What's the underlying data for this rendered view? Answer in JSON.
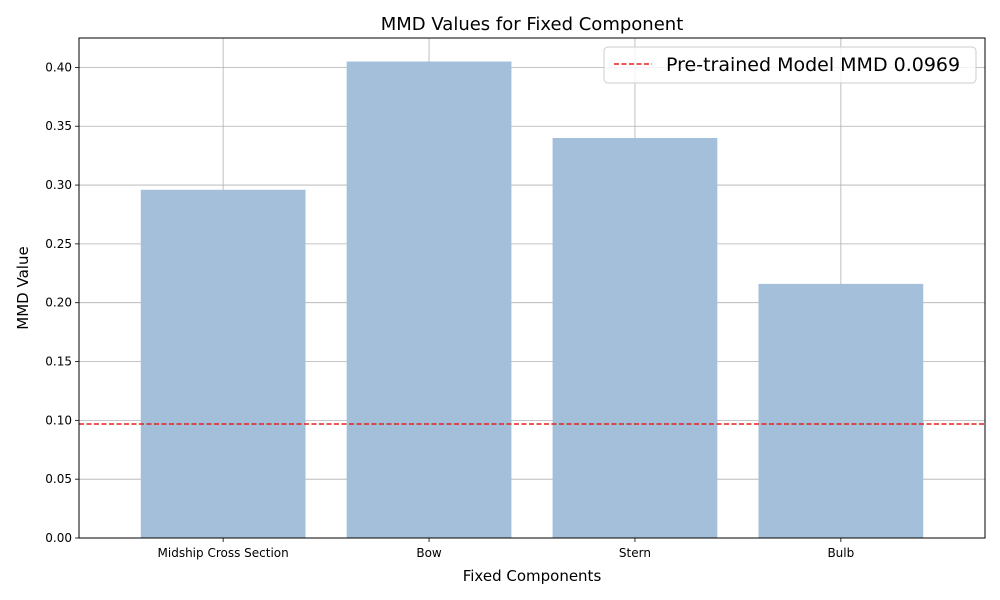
{
  "chart_data": {
    "type": "bar",
    "title": "MMD Values for Fixed Component",
    "xlabel": "Fixed Components",
    "ylabel": "MMD Value",
    "categories": [
      "Midship Cross Section",
      "Bow",
      "Stern",
      "Bulb"
    ],
    "values": [
      0.296,
      0.405,
      0.34,
      0.216
    ],
    "ylim": [
      0,
      0.425
    ],
    "yticks": [
      "0.00",
      "0.05",
      "0.10",
      "0.15",
      "0.20",
      "0.25",
      "0.30",
      "0.35",
      "0.40"
    ],
    "grid": true,
    "bar_color": "#a3bfd9",
    "reference_line": {
      "label": "Pre-trained Model MMD 0.0969",
      "value": 0.0969,
      "color": "#e8201a",
      "style": "dashed"
    },
    "legend_placement": "top-right"
  }
}
